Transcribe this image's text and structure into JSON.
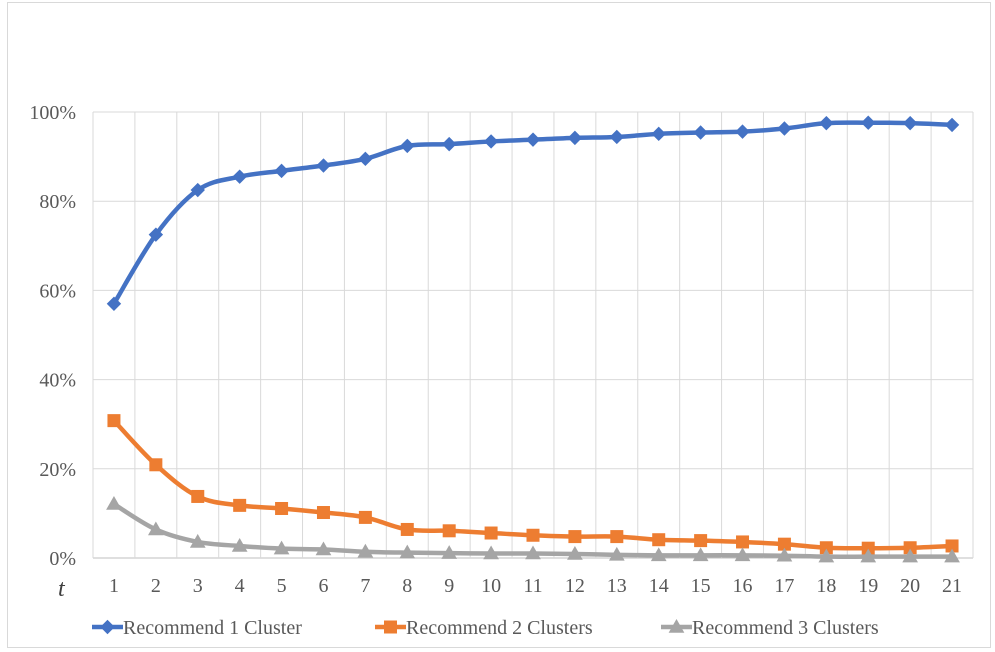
{
  "chart_data": {
    "type": "line",
    "title": "",
    "xlabel": "t",
    "ylabel": "",
    "x": [
      1,
      2,
      3,
      4,
      5,
      6,
      7,
      8,
      9,
      10,
      11,
      12,
      13,
      14,
      15,
      16,
      17,
      18,
      19,
      20,
      21
    ],
    "categories": [
      "1",
      "2",
      "3",
      "4",
      "5",
      "6",
      "7",
      "8",
      "9",
      "10",
      "11",
      "12",
      "13",
      "14",
      "15",
      "16",
      "17",
      "18",
      "19",
      "20",
      "21"
    ],
    "ylim": [
      0,
      100
    ],
    "yticks": [
      0,
      20,
      40,
      60,
      80,
      100
    ],
    "ytick_labels": [
      "0%",
      "20%",
      "40%",
      "60%",
      "80%",
      "100%"
    ],
    "grid": true,
    "legend_position": "bottom",
    "series": [
      {
        "name": "Recommend 1 Cluster",
        "color": "#4472C4",
        "marker": "diamond",
        "values": [
          57,
          72.5,
          82.5,
          85.5,
          86.8,
          88,
          89.5,
          92.4,
          92.8,
          93.4,
          93.8,
          94.2,
          94.4,
          95.1,
          95.4,
          95.6,
          96.3,
          97.5,
          97.6,
          97.5,
          97.1
        ]
      },
      {
        "name": "Recommend 2 Clusters",
        "color": "#ED7D31",
        "marker": "square",
        "values": [
          30.8,
          20.9,
          13.8,
          11.8,
          11.1,
          10.2,
          9.1,
          6.4,
          6.1,
          5.6,
          5.1,
          4.8,
          4.8,
          4.1,
          3.9,
          3.6,
          3.1,
          2.3,
          2.2,
          2.3,
          2.7
        ]
      },
      {
        "name": "Recommend 3 Clusters",
        "color": "#A5A5A5",
        "marker": "triangle",
        "values": [
          12.1,
          6.4,
          3.6,
          2.7,
          2.1,
          1.9,
          1.4,
          1.2,
          1.1,
          1.0,
          1.0,
          0.9,
          0.7,
          0.6,
          0.6,
          0.6,
          0.5,
          0.3,
          0.3,
          0.3,
          0.3
        ]
      }
    ]
  }
}
